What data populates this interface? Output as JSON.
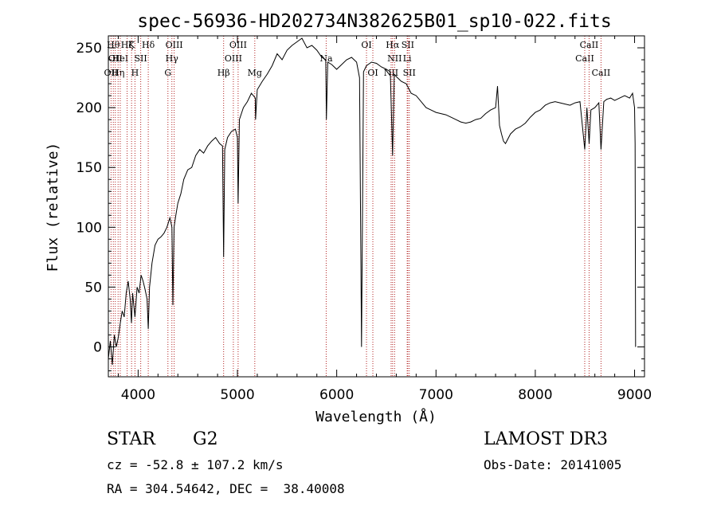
{
  "chart_data": {
    "type": "line",
    "title": "spec-56936-HD202734N382625B01_sp10-022.fits",
    "xlabel": "Wavelength (Å)",
    "ylabel": "Flux (relative)",
    "xlim": [
      3700,
      9100
    ],
    "ylim": [
      -25,
      260
    ],
    "xticks": [
      4000,
      5000,
      6000,
      7000,
      8000,
      9000
    ],
    "yticks": [
      0,
      50,
      100,
      150,
      200,
      250
    ],
    "grid": false,
    "line_color": "#000000",
    "marker_color": "#b22222",
    "series": [
      {
        "x": [
          3700,
          3720,
          3740,
          3760,
          3780,
          3800,
          3820,
          3840,
          3860,
          3880,
          3900,
          3920,
          3933,
          3945,
          3968,
          3990,
          4010,
          4030,
          4050,
          4070,
          4090,
          4102,
          4115,
          4140,
          4170,
          4200,
          4230,
          4260,
          4290,
          4320,
          4340,
          4350,
          4362,
          4380,
          4400,
          4430,
          4460,
          4500,
          4540,
          4580,
          4620,
          4660,
          4700,
          4740,
          4780,
          4820,
          4850,
          4861,
          4872,
          4900,
          4940,
          4980,
          5000,
          5007,
          5020,
          5060,
          5100,
          5140,
          5180,
          5183,
          5200,
          5250,
          5300,
          5350,
          5400,
          5450,
          5500,
          5550,
          5600,
          5650,
          5700,
          5750,
          5800,
          5850,
          5890,
          5896,
          5910,
          5950,
          6000,
          6050,
          6100,
          6150,
          6200,
          6230,
          6250,
          6270,
          6300,
          6350,
          6400,
          6450,
          6500,
          6540,
          6563,
          6580,
          6600,
          6650,
          6700,
          6750,
          6800,
          6850,
          6900,
          6950,
          7000,
          7050,
          7100,
          7150,
          7200,
          7250,
          7300,
          7350,
          7400,
          7450,
          7500,
          7550,
          7600,
          7620,
          7640,
          7660,
          7680,
          7700,
          7750,
          7800,
          7850,
          7900,
          7950,
          8000,
          8050,
          8100,
          8150,
          8200,
          8250,
          8300,
          8350,
          8400,
          8450,
          8498,
          8520,
          8542,
          8560,
          8600,
          8640,
          8662,
          8690,
          8720,
          8760,
          8800,
          8850,
          8900,
          8950,
          8980,
          9000,
          9005,
          9010
        ],
        "y": [
          -10,
          5,
          -15,
          10,
          0,
          8,
          20,
          30,
          25,
          45,
          55,
          40,
          20,
          45,
          25,
          50,
          45,
          60,
          55,
          48,
          40,
          15,
          50,
          70,
          85,
          90,
          92,
          95,
          100,
          108,
          100,
          35,
          100,
          110,
          120,
          128,
          140,
          148,
          150,
          160,
          165,
          162,
          168,
          172,
          175,
          170,
          168,
          75,
          165,
          175,
          180,
          182,
          175,
          120,
          190,
          200,
          205,
          212,
          208,
          190,
          215,
          222,
          228,
          235,
          245,
          240,
          248,
          252,
          255,
          258,
          250,
          252,
          248,
          242,
          240,
          190,
          238,
          236,
          232,
          236,
          240,
          242,
          238,
          225,
          0,
          230,
          235,
          238,
          237,
          234,
          232,
          230,
          160,
          228,
          226,
          222,
          220,
          212,
          210,
          205,
          200,
          198,
          196,
          195,
          194,
          192,
          190,
          188,
          187,
          188,
          190,
          191,
          195,
          198,
          200,
          218,
          185,
          178,
          172,
          170,
          178,
          182,
          184,
          187,
          192,
          196,
          198,
          202,
          204,
          205,
          204,
          203,
          202,
          204,
          205,
          165,
          200,
          170,
          198,
          200,
          204,
          165,
          205,
          207,
          208,
          206,
          208,
          210,
          208,
          212,
          200,
          170,
          0
        ]
      }
    ],
    "line_markers": [
      {
        "x": 3727,
        "label": "OII",
        "row": 2
      },
      {
        "x": 3750,
        "label": "Hθ",
        "row": 0
      },
      {
        "x": 3770,
        "label": "OII",
        "row": 1
      },
      {
        "x": 3798,
        "label": "Hη",
        "row": 2
      },
      {
        "x": 3820,
        "label": "HeI",
        "row": 1
      },
      {
        "x": 3889,
        "label": "Hζ",
        "row": 0
      },
      {
        "x": 3934,
        "label": "K",
        "row": 0
      },
      {
        "x": 3968,
        "label": "H",
        "row": 2
      },
      {
        "x": 4026,
        "label": "SII",
        "row": 1
      },
      {
        "x": 4102,
        "label": "Hδ",
        "row": 0
      },
      {
        "x": 4300,
        "label": "G",
        "row": 2
      },
      {
        "x": 4340,
        "label": "Hγ",
        "row": 1
      },
      {
        "x": 4363,
        "label": "OIII",
        "row": 0
      },
      {
        "x": 4861,
        "label": "Hβ",
        "row": 2
      },
      {
        "x": 4959,
        "label": "OIII",
        "row": 1
      },
      {
        "x": 5007,
        "label": "OIII",
        "row": 0
      },
      {
        "x": 5175,
        "label": "Mg",
        "row": 2
      },
      {
        "x": 5894,
        "label": "Na",
        "row": 1
      },
      {
        "x": 6300,
        "label": "OI",
        "row": 0
      },
      {
        "x": 6364,
        "label": "OI",
        "row": 2
      },
      {
        "x": 6548,
        "label": "NII",
        "row": 2
      },
      {
        "x": 6563,
        "label": "Hα",
        "row": 0
      },
      {
        "x": 6583,
        "label": "NII",
        "row": 1
      },
      {
        "x": 6710,
        "label": "Li",
        "row": 1
      },
      {
        "x": 6716,
        "label": "SII",
        "row": 0
      },
      {
        "x": 6731,
        "label": "SII",
        "row": 2
      },
      {
        "x": 8498,
        "label": "CaII",
        "row": 1
      },
      {
        "x": 8542,
        "label": "CaII",
        "row": 0
      },
      {
        "x": 8662,
        "label": "CaII",
        "row": 2
      }
    ]
  },
  "info": {
    "object_type": "STAR",
    "subclass": "G2",
    "survey": "LAMOST DR3",
    "redshift_text": "cz = -52.8 ± 107.2 km/s",
    "obs_date_text": "Obs-Date: 20141005",
    "coords_text": "RA = 304.54642, DEC =  38.40008"
  }
}
